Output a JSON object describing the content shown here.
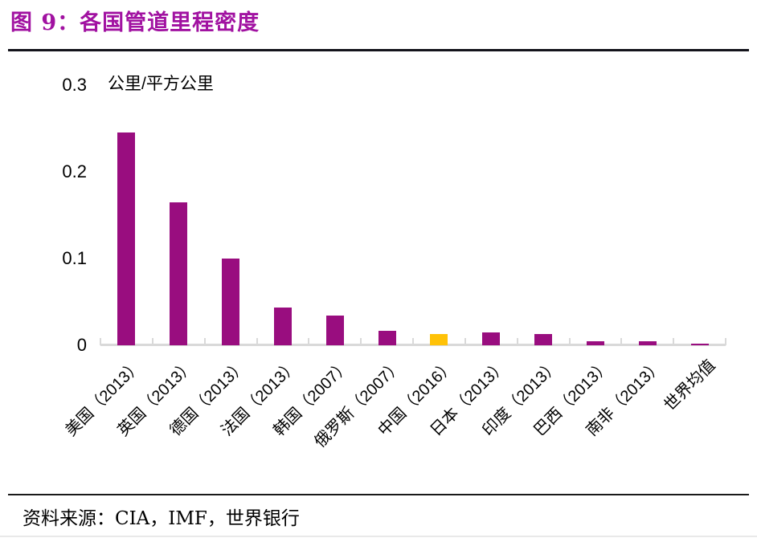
{
  "header": {
    "title": "图 9：各国管道里程密度",
    "title_color": "#A112A1"
  },
  "chart_data": {
    "type": "bar",
    "title": "各国管道里程密度",
    "figure_label": "图 9",
    "ylabel": "公里/平方公里",
    "xlabel": "",
    "categories": [
      "美国（2013）",
      "英国（2013）",
      "德国（2013）",
      "法国（2013）",
      "韩国（2007）",
      "俄罗斯（2007）",
      "中国（2016）",
      "日本（2013）",
      "印度（2013）",
      "巴西（2013）",
      "南非（2013）",
      "世界均值"
    ],
    "values": [
      0.245,
      0.165,
      0.1,
      0.044,
      0.034,
      0.017,
      0.013,
      0.015,
      0.013,
      0.005,
      0.005,
      0.002
    ],
    "ylim": [
      0,
      0.3
    ],
    "y_ticks": [
      {
        "label": "0",
        "value": 0
      },
      {
        "label": "0.1",
        "value": 0.1
      },
      {
        "label": "0.2",
        "value": 0.2
      },
      {
        "label": "0.3",
        "value": 0.3
      }
    ],
    "grid": false,
    "legend": "none",
    "bar_color": "#990D7F",
    "highlight_color": "#FFC207",
    "highlight_index": 6,
    "highlight_category": "中国（2016）",
    "axis_color": "#D9D9D9",
    "xtick_rotation_deg": 45
  },
  "footer": {
    "source": "资料来源：CIA，IMF，世界银行"
  }
}
